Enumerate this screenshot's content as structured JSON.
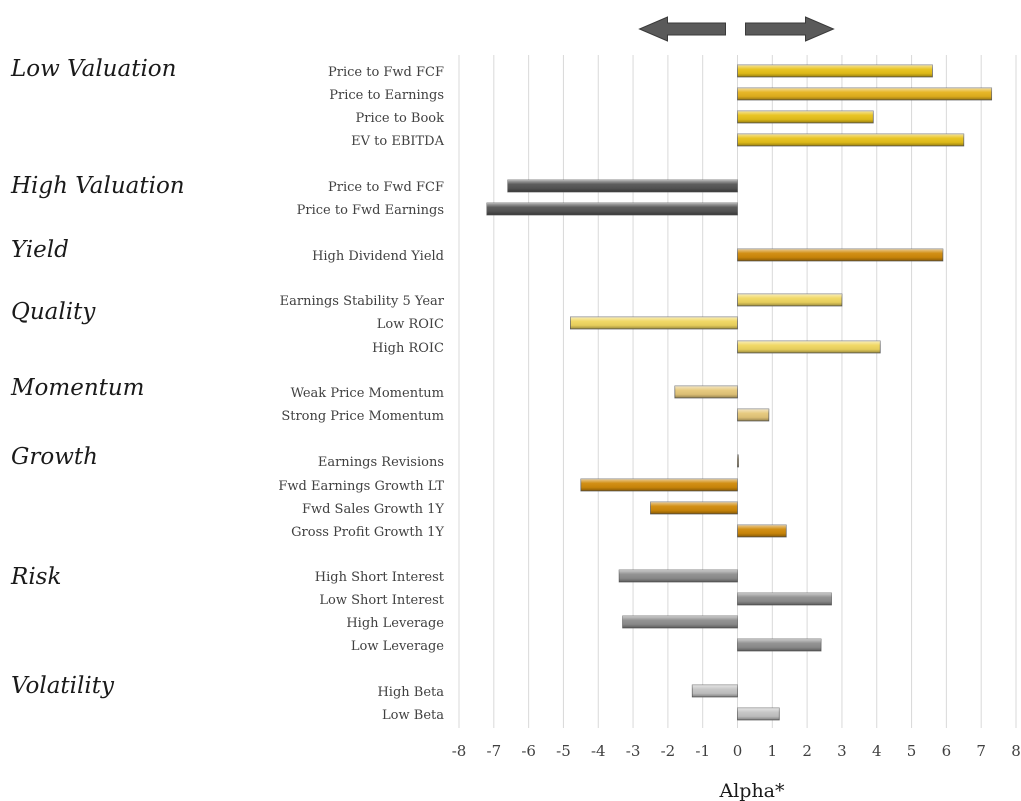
{
  "chart_data": {
    "type": "bar",
    "orientation": "horizontal",
    "xlabel": "Alpha*",
    "xlim": [
      -8,
      8
    ],
    "x_ticks": [
      "-8",
      "-7",
      "-6",
      "-5",
      "-4",
      "-3",
      "-2",
      "-1",
      "0",
      "1",
      "2",
      "3",
      "4",
      "5",
      "6",
      "7",
      "8"
    ],
    "grid": "vertical",
    "direction_arrows": [
      "left",
      "right"
    ],
    "colors": {
      "gold": "#e8c21a",
      "gold_light": "#f0d760",
      "gold_dark": "#d99a12",
      "orange": "#d08a0a",
      "dark_gray": "#555555",
      "gray": "#8e8e8e",
      "light_gray": "#c4c4c4"
    },
    "groups": [
      {
        "name": "Low Valuation",
        "items": [
          {
            "label": "Price to Fwd FCF",
            "value": 5.6,
            "color": "#e8c21a"
          },
          {
            "label": "Price to Earnings",
            "value": 7.3,
            "color": "#e6b31e"
          },
          {
            "label": "Price to Book",
            "value": 3.9,
            "color": "#e8c21a"
          },
          {
            "label": "EV to EBITDA",
            "value": 6.5,
            "color": "#e8c21a"
          }
        ]
      },
      {
        "name": "High Valuation",
        "items": [
          {
            "label": "Price to Fwd FCF",
            "value": -6.6,
            "color": "#555555"
          },
          {
            "label": "Price to Fwd Earnings",
            "value": -7.2,
            "color": "#555555"
          }
        ]
      },
      {
        "name": "Yield",
        "items": [
          {
            "label": "High Dividend Yield",
            "value": 5.9,
            "color": "#d08a0a"
          }
        ]
      },
      {
        "name": "Quality",
        "items": [
          {
            "label": "Earnings Stability 5 Year",
            "value": 3.0,
            "color": "#f0d760"
          },
          {
            "label": "Low ROIC",
            "value": -4.8,
            "color": "#f0d760"
          },
          {
            "label": "High ROIC",
            "value": 4.1,
            "color": "#f0d760"
          }
        ]
      },
      {
        "name": "Momentum",
        "items": [
          {
            "label": "Weak Price Momentum",
            "value": -1.8,
            "color": "#e6c87a"
          },
          {
            "label": "Strong Price Momentum",
            "value": 0.9,
            "color": "#e6c87a"
          }
        ]
      },
      {
        "name": "Growth",
        "items": [
          {
            "label": "Earnings Revisions",
            "value": 0.0,
            "color": "#d99a12"
          },
          {
            "label": "Fwd Earnings Growth LT",
            "value": -4.5,
            "color": "#d08a0a"
          },
          {
            "label": "Fwd Sales Growth 1Y",
            "value": -2.5,
            "color": "#d08a0a"
          },
          {
            "label": "Gross Profit Growth 1Y",
            "value": 1.4,
            "color": "#d08a0a"
          }
        ]
      },
      {
        "name": "Risk",
        "items": [
          {
            "label": "High Short Interest",
            "value": -3.4,
            "color": "#8e8e8e"
          },
          {
            "label": "Low Short Interest",
            "value": 2.7,
            "color": "#8e8e8e"
          },
          {
            "label": "High Leverage",
            "value": -3.3,
            "color": "#8e8e8e"
          },
          {
            "label": "Low Leverage",
            "value": 2.4,
            "color": "#8e8e8e"
          }
        ]
      },
      {
        "name": "Volatility",
        "items": [
          {
            "label": "High Beta",
            "value": -1.3,
            "color": "#c4c4c4"
          },
          {
            "label": "Low Beta",
            "value": 1.2,
            "color": "#c4c4c4"
          }
        ]
      }
    ]
  }
}
